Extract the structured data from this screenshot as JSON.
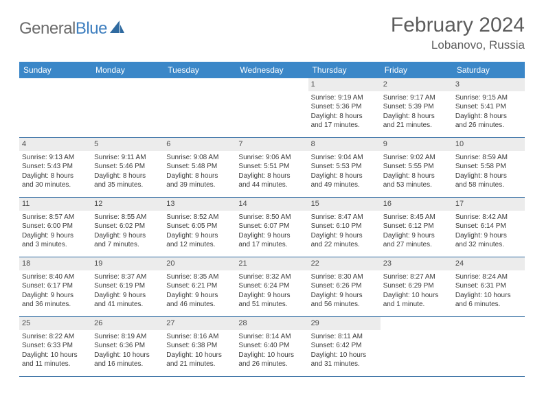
{
  "logo": {
    "text1": "General",
    "text2": "Blue",
    "color1": "#6b6b6b",
    "color2": "#3f7fbf",
    "sail_color": "#2f6aa0"
  },
  "title": "February 2024",
  "location": "Lobanovo, Russia",
  "colors": {
    "header_bg": "#3b87c8",
    "header_text": "#ffffff",
    "daynum_bg": "#ececec",
    "border": "#2f6aa0",
    "body_text": "#3a3a3a",
    "title_text": "#5c5c5c"
  },
  "day_headers": [
    "Sunday",
    "Monday",
    "Tuesday",
    "Wednesday",
    "Thursday",
    "Friday",
    "Saturday"
  ],
  "weeks": [
    [
      {
        "n": "",
        "empty": true
      },
      {
        "n": "",
        "empty": true
      },
      {
        "n": "",
        "empty": true
      },
      {
        "n": "",
        "empty": true
      },
      {
        "n": "1",
        "sunrise": "Sunrise: 9:19 AM",
        "sunset": "Sunset: 5:36 PM",
        "d1": "Daylight: 8 hours",
        "d2": "and 17 minutes."
      },
      {
        "n": "2",
        "sunrise": "Sunrise: 9:17 AM",
        "sunset": "Sunset: 5:39 PM",
        "d1": "Daylight: 8 hours",
        "d2": "and 21 minutes."
      },
      {
        "n": "3",
        "sunrise": "Sunrise: 9:15 AM",
        "sunset": "Sunset: 5:41 PM",
        "d1": "Daylight: 8 hours",
        "d2": "and 26 minutes."
      }
    ],
    [
      {
        "n": "4",
        "sunrise": "Sunrise: 9:13 AM",
        "sunset": "Sunset: 5:43 PM",
        "d1": "Daylight: 8 hours",
        "d2": "and 30 minutes."
      },
      {
        "n": "5",
        "sunrise": "Sunrise: 9:11 AM",
        "sunset": "Sunset: 5:46 PM",
        "d1": "Daylight: 8 hours",
        "d2": "and 35 minutes."
      },
      {
        "n": "6",
        "sunrise": "Sunrise: 9:08 AM",
        "sunset": "Sunset: 5:48 PM",
        "d1": "Daylight: 8 hours",
        "d2": "and 39 minutes."
      },
      {
        "n": "7",
        "sunrise": "Sunrise: 9:06 AM",
        "sunset": "Sunset: 5:51 PM",
        "d1": "Daylight: 8 hours",
        "d2": "and 44 minutes."
      },
      {
        "n": "8",
        "sunrise": "Sunrise: 9:04 AM",
        "sunset": "Sunset: 5:53 PM",
        "d1": "Daylight: 8 hours",
        "d2": "and 49 minutes."
      },
      {
        "n": "9",
        "sunrise": "Sunrise: 9:02 AM",
        "sunset": "Sunset: 5:55 PM",
        "d1": "Daylight: 8 hours",
        "d2": "and 53 minutes."
      },
      {
        "n": "10",
        "sunrise": "Sunrise: 8:59 AM",
        "sunset": "Sunset: 5:58 PM",
        "d1": "Daylight: 8 hours",
        "d2": "and 58 minutes."
      }
    ],
    [
      {
        "n": "11",
        "sunrise": "Sunrise: 8:57 AM",
        "sunset": "Sunset: 6:00 PM",
        "d1": "Daylight: 9 hours",
        "d2": "and 3 minutes."
      },
      {
        "n": "12",
        "sunrise": "Sunrise: 8:55 AM",
        "sunset": "Sunset: 6:02 PM",
        "d1": "Daylight: 9 hours",
        "d2": "and 7 minutes."
      },
      {
        "n": "13",
        "sunrise": "Sunrise: 8:52 AM",
        "sunset": "Sunset: 6:05 PM",
        "d1": "Daylight: 9 hours",
        "d2": "and 12 minutes."
      },
      {
        "n": "14",
        "sunrise": "Sunrise: 8:50 AM",
        "sunset": "Sunset: 6:07 PM",
        "d1": "Daylight: 9 hours",
        "d2": "and 17 minutes."
      },
      {
        "n": "15",
        "sunrise": "Sunrise: 8:47 AM",
        "sunset": "Sunset: 6:10 PM",
        "d1": "Daylight: 9 hours",
        "d2": "and 22 minutes."
      },
      {
        "n": "16",
        "sunrise": "Sunrise: 8:45 AM",
        "sunset": "Sunset: 6:12 PM",
        "d1": "Daylight: 9 hours",
        "d2": "and 27 minutes."
      },
      {
        "n": "17",
        "sunrise": "Sunrise: 8:42 AM",
        "sunset": "Sunset: 6:14 PM",
        "d1": "Daylight: 9 hours",
        "d2": "and 32 minutes."
      }
    ],
    [
      {
        "n": "18",
        "sunrise": "Sunrise: 8:40 AM",
        "sunset": "Sunset: 6:17 PM",
        "d1": "Daylight: 9 hours",
        "d2": "and 36 minutes."
      },
      {
        "n": "19",
        "sunrise": "Sunrise: 8:37 AM",
        "sunset": "Sunset: 6:19 PM",
        "d1": "Daylight: 9 hours",
        "d2": "and 41 minutes."
      },
      {
        "n": "20",
        "sunrise": "Sunrise: 8:35 AM",
        "sunset": "Sunset: 6:21 PM",
        "d1": "Daylight: 9 hours",
        "d2": "and 46 minutes."
      },
      {
        "n": "21",
        "sunrise": "Sunrise: 8:32 AM",
        "sunset": "Sunset: 6:24 PM",
        "d1": "Daylight: 9 hours",
        "d2": "and 51 minutes."
      },
      {
        "n": "22",
        "sunrise": "Sunrise: 8:30 AM",
        "sunset": "Sunset: 6:26 PM",
        "d1": "Daylight: 9 hours",
        "d2": "and 56 minutes."
      },
      {
        "n": "23",
        "sunrise": "Sunrise: 8:27 AM",
        "sunset": "Sunset: 6:29 PM",
        "d1": "Daylight: 10 hours",
        "d2": "and 1 minute."
      },
      {
        "n": "24",
        "sunrise": "Sunrise: 8:24 AM",
        "sunset": "Sunset: 6:31 PM",
        "d1": "Daylight: 10 hours",
        "d2": "and 6 minutes."
      }
    ],
    [
      {
        "n": "25",
        "sunrise": "Sunrise: 8:22 AM",
        "sunset": "Sunset: 6:33 PM",
        "d1": "Daylight: 10 hours",
        "d2": "and 11 minutes."
      },
      {
        "n": "26",
        "sunrise": "Sunrise: 8:19 AM",
        "sunset": "Sunset: 6:36 PM",
        "d1": "Daylight: 10 hours",
        "d2": "and 16 minutes."
      },
      {
        "n": "27",
        "sunrise": "Sunrise: 8:16 AM",
        "sunset": "Sunset: 6:38 PM",
        "d1": "Daylight: 10 hours",
        "d2": "and 21 minutes."
      },
      {
        "n": "28",
        "sunrise": "Sunrise: 8:14 AM",
        "sunset": "Sunset: 6:40 PM",
        "d1": "Daylight: 10 hours",
        "d2": "and 26 minutes."
      },
      {
        "n": "29",
        "sunrise": "Sunrise: 8:11 AM",
        "sunset": "Sunset: 6:42 PM",
        "d1": "Daylight: 10 hours",
        "d2": "and 31 minutes."
      },
      {
        "n": "",
        "empty": true
      },
      {
        "n": "",
        "empty": true
      }
    ]
  ]
}
